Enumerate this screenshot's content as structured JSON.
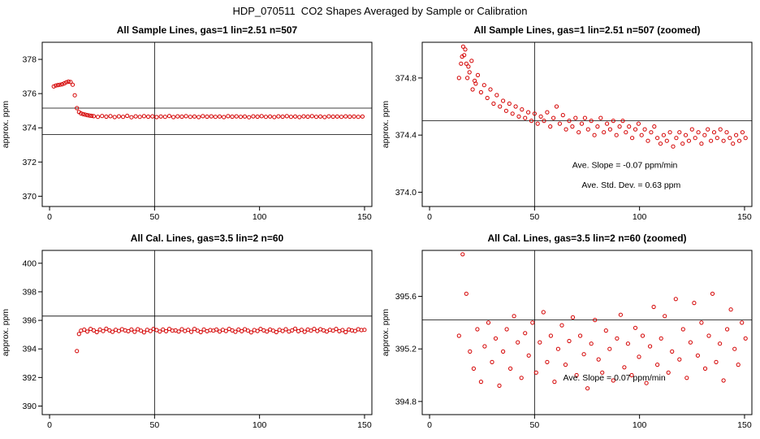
{
  "title": "HDP_070511  CO2 Shapes Averaged by Sample or Calibration",
  "chart_data": [
    {
      "type": "scatter",
      "title": "All Sample Lines, gas=1 lin=2.51 n=507",
      "ylabel": "approx. ppm",
      "xlabel": "",
      "color": "#d40000",
      "xlim": [
        -3.5,
        153.5
      ],
      "ylim": [
        369.4,
        379.0
      ],
      "xticks": [
        0,
        50,
        100,
        150
      ],
      "xtick_labels": [
        "0",
        "50",
        "100",
        "150"
      ],
      "ytick_vals": [
        370,
        372,
        374,
        376,
        378
      ],
      "ytick_labels": [
        "370",
        "372",
        "374",
        "376",
        "378"
      ],
      "vlines": [
        50
      ],
      "hlines": [
        375.15,
        373.6
      ],
      "annotations": [],
      "runs": [
        {
          "x0": 2,
          "dx": 1,
          "y": [
            376.42,
            376.47,
            376.5,
            376.52,
            376.55,
            376.6,
            376.66,
            376.7,
            376.68,
            376.52,
            375.9,
            375.15,
            374.92,
            374.84,
            374.8,
            374.77,
            374.74,
            374.72,
            374.7
          ]
        },
        {
          "x0": 21,
          "dx": 2,
          "y": [
            374.68,
            374.64,
            374.69,
            374.65,
            374.68,
            374.63,
            374.67,
            374.64,
            374.7,
            374.62,
            374.67,
            374.64,
            374.68,
            374.65,
            374.67,
            374.63,
            374.66,
            374.64,
            374.69,
            374.63,
            374.67,
            374.65,
            374.68,
            374.64,
            374.66,
            374.63,
            374.68,
            374.65,
            374.67,
            374.64,
            374.66,
            374.63,
            374.68,
            374.65,
            374.67,
            374.64,
            374.66,
            374.62,
            374.67,
            374.65,
            374.68,
            374.64,
            374.66,
            374.63,
            374.67,
            374.65,
            374.68,
            374.64,
            374.66,
            374.63,
            374.67,
            374.65,
            374.68,
            374.64,
            374.66,
            374.63,
            374.67,
            374.65,
            374.66,
            374.64,
            374.67,
            374.65,
            374.66,
            374.64,
            374.66
          ]
        }
      ],
      "extra_points": []
    },
    {
      "type": "scatter",
      "title": "All Sample Lines, gas=1 lin=2.51 n=507 (zoomed)",
      "ylabel": "approx. ppm",
      "xlabel": "",
      "color": "#d40000",
      "xlim": [
        -3.5,
        153.5
      ],
      "ylim": [
        373.9,
        375.05
      ],
      "xticks": [
        0,
        50,
        100,
        150
      ],
      "xtick_labels": [
        "0",
        "50",
        "100",
        "150"
      ],
      "ytick_vals": [
        374.0,
        374.4,
        374.8
      ],
      "ytick_labels": [
        "374.0",
        "374.4",
        "374.8"
      ],
      "vlines": [
        50
      ],
      "hlines": [
        374.5
      ],
      "annotations": [
        {
          "x": 93,
          "y": 374.17,
          "text": "Ave. Slope = -0.07  ppm/min"
        },
        {
          "x": 96,
          "y": 374.03,
          "text": "Ave. Std. Dev. = 0.63  ppm"
        }
      ],
      "runs": [
        {
          "x0": 14,
          "dx": 1.5,
          "y": [
            374.8,
            374.95,
            375.0,
            374.88,
            374.92,
            374.78,
            374.82,
            374.7,
            374.75,
            374.66,
            374.72,
            374.62,
            374.68,
            374.6,
            374.64,
            374.57,
            374.62,
            374.55,
            374.6,
            374.53,
            374.58,
            374.52,
            374.56,
            374.5,
            374.55,
            374.48,
            374.53,
            374.5,
            374.56,
            374.46,
            374.52,
            374.6,
            374.48,
            374.54,
            374.44,
            374.5,
            374.46,
            374.52,
            374.42,
            374.48,
            374.52,
            374.44,
            374.5,
            374.4,
            374.46,
            374.52,
            374.42,
            374.48,
            374.44,
            374.5,
            374.4,
            374.46,
            374.5,
            374.42,
            374.46,
            374.38,
            374.44,
            374.48,
            374.4,
            374.44,
            374.36,
            374.42,
            374.46,
            374.38,
            374.34,
            374.4,
            374.36,
            374.42,
            374.32,
            374.38,
            374.42,
            374.34,
            374.4,
            374.36,
            374.44,
            374.38,
            374.42,
            374.34,
            374.4,
            374.44,
            374.36,
            374.42,
            374.38,
            374.44,
            374.36,
            374.42,
            374.38,
            374.34,
            374.4,
            374.36,
            374.42,
            374.38
          ]
        }
      ],
      "extra_points": [
        [
          15,
          374.9
        ],
        [
          16,
          375.02
        ],
        [
          16.5,
          374.96
        ],
        [
          17.5,
          374.9
        ],
        [
          18,
          374.8
        ],
        [
          19,
          374.84
        ],
        [
          20.5,
          374.72
        ],
        [
          22,
          374.76
        ]
      ]
    },
    {
      "type": "scatter",
      "title": "All Cal. Lines, gas=3.5 lin=2 n=60",
      "ylabel": "approx. ppm",
      "xlabel": "",
      "color": "#d40000",
      "xlim": [
        -3.5,
        153.5
      ],
      "ylim": [
        389.4,
        400.9
      ],
      "xticks": [
        0,
        50,
        100,
        150
      ],
      "xtick_labels": [
        "0",
        "50",
        "100",
        "150"
      ],
      "ytick_vals": [
        390,
        392,
        394,
        396,
        398,
        400
      ],
      "ytick_labels": [
        "390",
        "392",
        "394",
        "396",
        "398",
        "400"
      ],
      "vlines": [
        50
      ],
      "hlines": [
        396.3
      ],
      "annotations": [],
      "runs": [
        {
          "x0": 15,
          "dx": 1.5,
          "y": [
            395.28,
            395.35,
            395.22,
            395.4,
            395.3,
            395.18,
            395.36,
            395.25,
            395.42,
            395.3,
            395.2,
            395.34,
            395.26,
            395.38,
            395.3,
            395.24,
            395.36,
            395.2,
            395.38,
            395.28,
            395.16,
            395.34,
            395.26,
            395.4,
            395.32,
            395.22,
            395.36,
            395.24,
            395.4,
            395.28,
            395.3,
            395.22,
            395.38,
            395.26,
            395.34,
            395.2,
            395.4,
            395.28,
            395.18,
            395.36,
            395.24,
            395.32,
            395.28,
            395.36,
            395.22,
            395.34,
            395.26,
            395.4,
            395.3,
            395.2,
            395.36,
            395.24,
            395.38,
            395.28,
            395.16,
            395.32,
            395.26,
            395.4,
            395.3,
            395.22,
            395.36,
            395.28,
            395.18,
            395.34,
            395.26,
            395.38,
            395.22,
            395.3,
            395.42,
            395.24,
            395.34,
            395.2,
            395.36,
            395.28,
            395.4,
            395.26,
            395.38,
            395.3,
            395.22,
            395.34,
            395.28,
            395.4,
            395.24,
            395.32,
            395.18,
            395.36,
            395.3,
            395.26,
            395.38,
            395.32,
            395.34
          ]
        }
      ],
      "extra_points": [
        [
          13,
          393.85
        ],
        [
          14,
          395.05
        ]
      ]
    },
    {
      "type": "scatter",
      "title": "All Cal. Lines, gas=3.5 lin=2 n=60 (zoomed)",
      "ylabel": "approx. ppm",
      "xlabel": "",
      "color": "#d40000",
      "xlim": [
        -3.5,
        153.5
      ],
      "ylim": [
        394.7,
        395.95
      ],
      "xticks": [
        0,
        50,
        100,
        150
      ],
      "xtick_labels": [
        "0",
        "50",
        "100",
        "150"
      ],
      "ytick_vals": [
        394.8,
        395.2,
        395.6
      ],
      "ytick_labels": [
        "394.8",
        "395.2",
        "395.6"
      ],
      "vlines": [
        50
      ],
      "hlines": [
        395.42
      ],
      "annotations": [
        {
          "x": 88,
          "y": 394.96,
          "text": "Ave. Slope =  0.07  ppm/min"
        }
      ],
      "runs": [
        {
          "x0": 14,
          "dx": 1.75,
          "y": [
            395.3,
            395.92,
            395.62,
            395.18,
            395.05,
            395.35,
            394.95,
            395.22,
            395.4,
            395.1,
            395.28,
            394.92,
            395.18,
            395.35,
            395.05,
            395.45,
            395.25,
            394.98,
            395.32,
            395.15,
            395.4,
            395.02,
            395.25,
            395.48,
            395.1,
            395.3,
            394.95,
            395.2,
            395.38,
            395.08,
            395.26,
            395.44,
            395.0,
            395.3,
            395.16,
            394.9,
            395.24,
            395.42,
            395.12,
            395.02,
            395.34,
            395.2,
            394.96,
            395.28,
            395.46,
            395.06,
            395.24,
            395.0,
            395.36,
            395.14,
            395.3,
            394.94,
            395.22,
            395.52,
            395.08,
            395.28,
            395.45,
            395.02,
            395.18,
            395.58,
            395.12,
            395.35,
            394.98,
            395.25,
            395.55,
            395.15,
            395.4,
            395.05,
            395.3,
            395.62,
            395.1,
            395.24,
            394.96,
            395.35,
            395.5,
            395.2,
            395.08,
            395.4,
            395.28
          ]
        }
      ],
      "extra_points": []
    }
  ]
}
